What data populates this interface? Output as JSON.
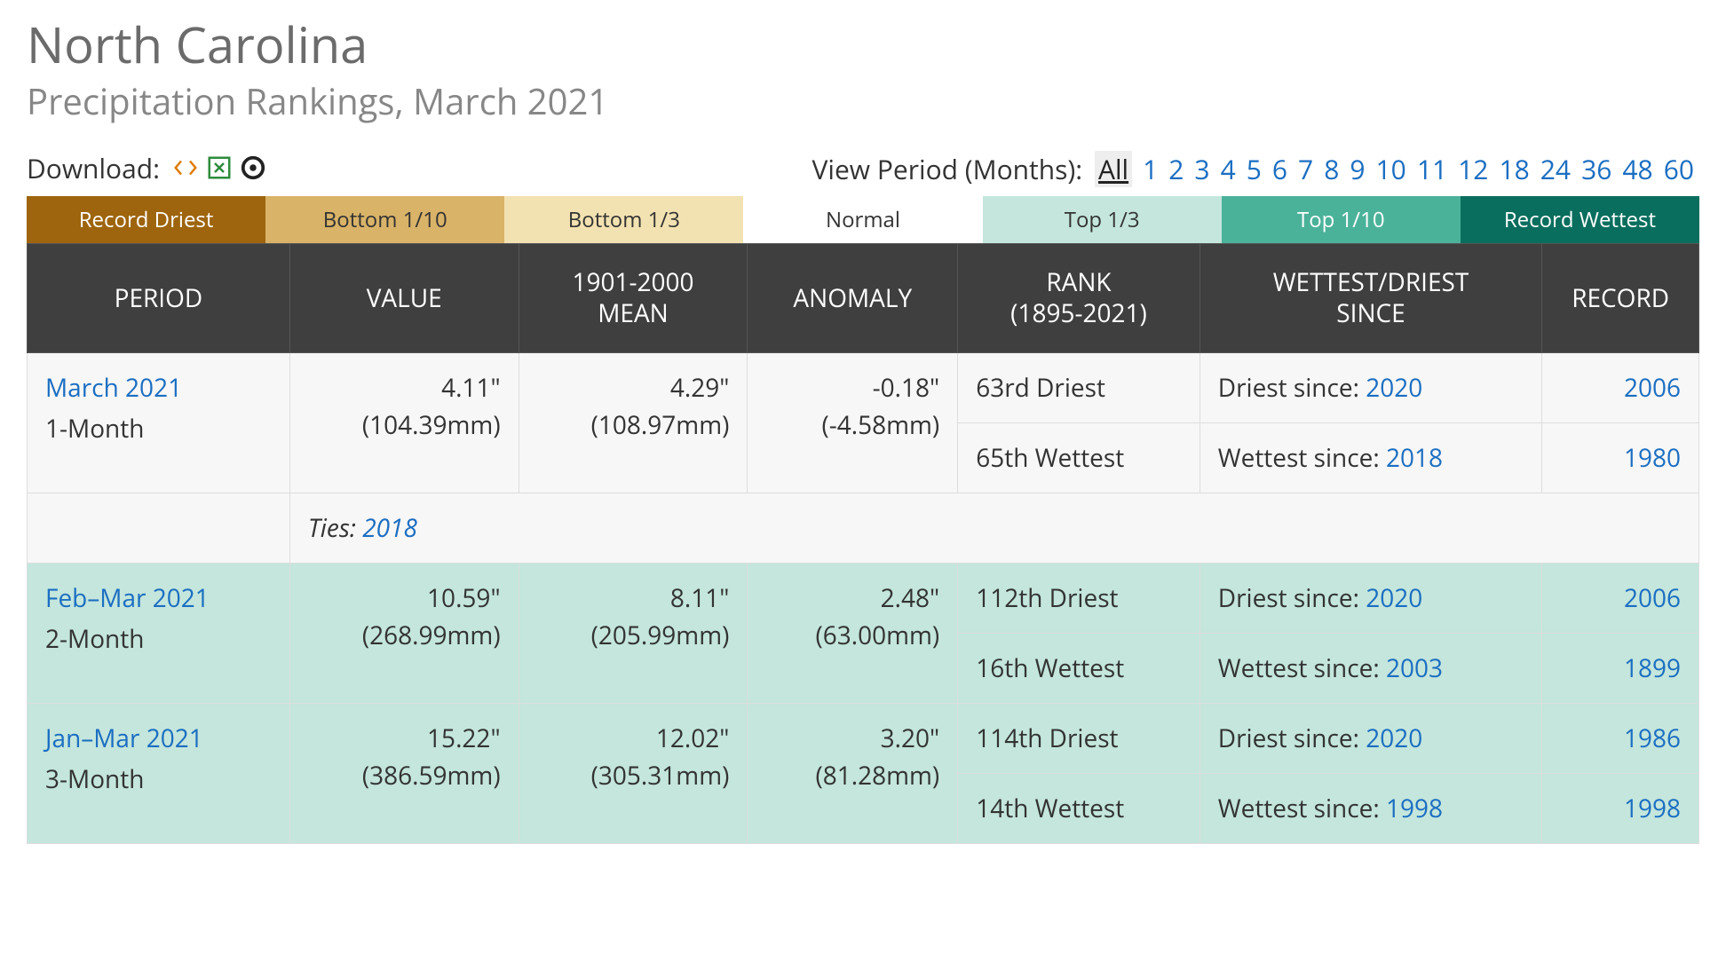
{
  "header": {
    "title": "North Carolina",
    "subtitle": "Precipitation Rankings, March 2021"
  },
  "download": {
    "label": "Download:",
    "icons": [
      "xml",
      "xls",
      "json"
    ]
  },
  "view_period": {
    "label": "View Period (Months):",
    "active": "All",
    "options": [
      "All",
      "1",
      "2",
      "3",
      "4",
      "5",
      "6",
      "7",
      "8",
      "9",
      "10",
      "11",
      "12",
      "18",
      "24",
      "36",
      "48",
      "60"
    ]
  },
  "legend": [
    {
      "label": "Record Driest",
      "bg": "#9e650e",
      "fg": "#ffffff"
    },
    {
      "label": "Bottom 1/10",
      "bg": "#d9b368",
      "fg": "#333333"
    },
    {
      "label": "Bottom 1/3",
      "bg": "#f3e2b1",
      "fg": "#333333"
    },
    {
      "label": "Normal",
      "bg": "#ffffff",
      "fg": "#333333"
    },
    {
      "label": "Top 1/3",
      "bg": "#c4e6dc",
      "fg": "#333333"
    },
    {
      "label": "Top 1/10",
      "bg": "#4bb29a",
      "fg": "#ffffff"
    },
    {
      "label": "Record Wettest",
      "bg": "#0a6e5e",
      "fg": "#ffffff"
    }
  ],
  "table": {
    "columns": [
      "PERIOD",
      "VALUE",
      "1901-2000 MEAN",
      "ANOMALY",
      "RANK (1895-2021)",
      "WETTEST/DRIEST SINCE",
      "RECORD"
    ],
    "rows": [
      {
        "bg": "#f7f7f7",
        "period_link": "March 2021",
        "period_label": "1-Month",
        "value_in": "4.11\"",
        "value_mm": "(104.39mm)",
        "mean_in": "4.29\"",
        "mean_mm": "(108.97mm)",
        "anom_in": "-0.18\"",
        "anom_mm": "(-4.58mm)",
        "ranks": [
          {
            "rank": "63rd Driest",
            "since_label": "Driest since:",
            "since_year": "2020",
            "record": "2006"
          },
          {
            "rank": "65th Wettest",
            "since_label": "Wettest since:",
            "since_year": "2018",
            "record": "1980"
          }
        ],
        "ties_label": "Ties:",
        "ties_year": "2018"
      },
      {
        "bg": "#c4e6dc",
        "period_link": "Feb–Mar 2021",
        "period_label": "2-Month",
        "value_in": "10.59\"",
        "value_mm": "(268.99mm)",
        "mean_in": "8.11\"",
        "mean_mm": "(205.99mm)",
        "anom_in": "2.48\"",
        "anom_mm": "(63.00mm)",
        "ranks": [
          {
            "rank": "112th Driest",
            "since_label": "Driest since:",
            "since_year": "2020",
            "record": "2006"
          },
          {
            "rank": "16th Wettest",
            "since_label": "Wettest since:",
            "since_year": "2003",
            "record": "1899"
          }
        ]
      },
      {
        "bg": "#c4e6dc",
        "period_link": "Jan–Mar 2021",
        "period_label": "3-Month",
        "value_in": "15.22\"",
        "value_mm": "(386.59mm)",
        "mean_in": "12.02\"",
        "mean_mm": "(305.31mm)",
        "anom_in": "3.20\"",
        "anom_mm": "(81.28mm)",
        "ranks": [
          {
            "rank": "114th Driest",
            "since_label": "Driest since:",
            "since_year": "2020",
            "record": "1986"
          },
          {
            "rank": "14th Wettest",
            "since_label": "Wettest since:",
            "since_year": "1998",
            "record": "1998"
          }
        ]
      }
    ]
  },
  "colors": {
    "link": "#1b6ec2",
    "header_bg": "#3f3f3f"
  }
}
